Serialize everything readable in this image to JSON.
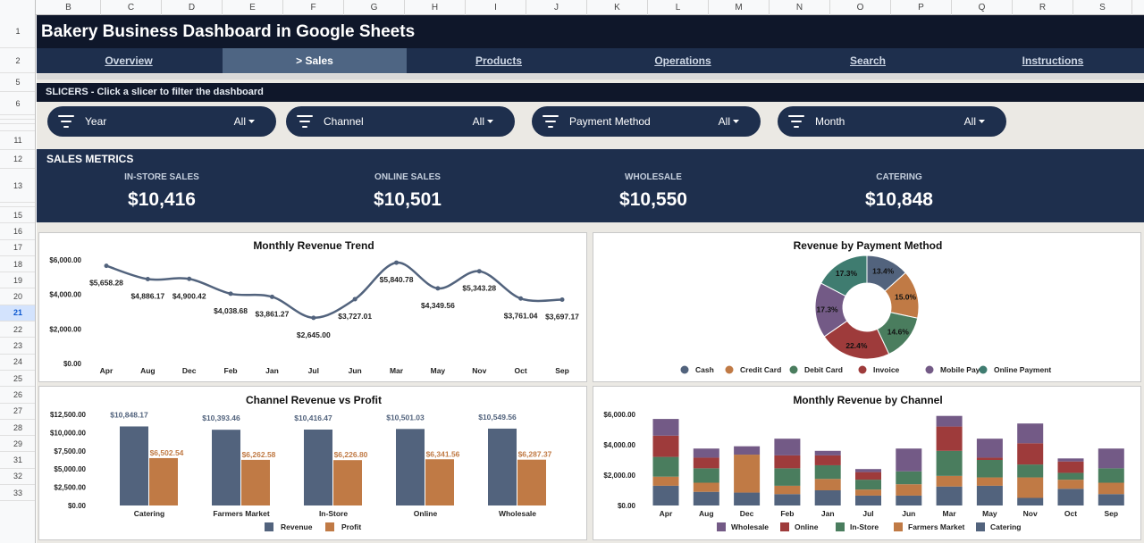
{
  "columns": [
    "B",
    "C",
    "D",
    "E",
    "F",
    "G",
    "H",
    "I",
    "J",
    "K",
    "L",
    "M",
    "N",
    "O",
    "P",
    "Q",
    "R",
    "S"
  ],
  "rows": [
    "1",
    "2",
    "5",
    "6",
    "7",
    "8",
    "10",
    "11",
    "12",
    "13",
    "14",
    "15",
    "16",
    "17",
    "18",
    "19",
    "20",
    "21",
    "22",
    "23",
    "24",
    "25",
    "26",
    "27",
    "28",
    "29",
    "31",
    "32",
    "33"
  ],
  "selected_row": "21",
  "title": "Bakery Business Dashboard in Google Sheets",
  "nav": [
    {
      "label": "Overview"
    },
    {
      "label": "> Sales"
    },
    {
      "label": "Products"
    },
    {
      "label": "Operations"
    },
    {
      "label": "Search"
    },
    {
      "label": "Instructions"
    }
  ],
  "slicers": {
    "header": "SLICERS - Click a slicer to filter the dashboard",
    "items": [
      {
        "label": "Year",
        "value": "All"
      },
      {
        "label": "Channel",
        "value": "All"
      },
      {
        "label": "Payment Method",
        "value": "All"
      },
      {
        "label": "Month",
        "value": "All"
      }
    ]
  },
  "metrics": {
    "header": "SALES METRICS",
    "items": [
      {
        "label": "IN-STORE SALES",
        "value": "$10,416"
      },
      {
        "label": "ONLINE SALES",
        "value": "$10,501"
      },
      {
        "label": "WHOLESALE",
        "value": "$10,550"
      },
      {
        "label": "CATERING",
        "value": "$10,848"
      }
    ]
  },
  "colors": {
    "navy": "#1e2f4d",
    "dark": "#0f172a",
    "slate": "#52637d",
    "copper": "#c07a45",
    "green": "#4a7d5e",
    "red": "#9e3b3b",
    "purple": "#735a86",
    "teal": "#3f7c70"
  },
  "chart_data": [
    {
      "type": "line",
      "title": "Monthly Revenue Trend",
      "categories": [
        "Apr",
        "Aug",
        "Dec",
        "Feb",
        "Jan",
        "Jul",
        "Jun",
        "Mar",
        "May",
        "Nov",
        "Oct",
        "Sep"
      ],
      "values": [
        5658.28,
        4886.17,
        4900.42,
        4038.68,
        3861.27,
        2645.0,
        3727.01,
        5840.78,
        4349.56,
        5343.28,
        3761.04,
        3697.17
      ],
      "data_labels": [
        "$5,658.28",
        "$4,886.17",
        "$4,900.42",
        "$4,038.68",
        "$3,861.27",
        "$2,645.00",
        "$3,727.01",
        "$5,840.78",
        "$4,349.56",
        "$5,343.28",
        "$3,761.04",
        "$3,697.17"
      ],
      "ylim": [
        0,
        6000
      ],
      "yticks": [
        "$0.00",
        "$2,000.00",
        "$4,000.00",
        "$6,000.00"
      ],
      "color": "#52637d"
    },
    {
      "type": "pie",
      "title": "Revenue by Payment Method",
      "donut": true,
      "categories": [
        "Cash",
        "Credit Card",
        "Debit Card",
        "Invoice",
        "Mobile Pay",
        "Online Payment"
      ],
      "values": [
        13.4,
        15.0,
        14.6,
        22.4,
        17.3,
        17.3
      ],
      "data_labels": [
        "13.4%",
        "15.0%",
        "14.6%",
        "22.4%",
        "17.3%",
        "17.3%"
      ],
      "colors": [
        "#52637d",
        "#c07a45",
        "#4a7d5e",
        "#9e3b3b",
        "#735a86",
        "#3f7c70"
      ],
      "legend": "bottom"
    },
    {
      "type": "bar",
      "title": "Channel Revenue vs Profit",
      "categories": [
        "Catering",
        "Farmers Market",
        "In-Store",
        "Online",
        "Wholesale"
      ],
      "series": [
        {
          "name": "Revenue",
          "values": [
            10848.17,
            10393.46,
            10416.47,
            10501.03,
            10549.56
          ],
          "labels": [
            "$10,848.17",
            "$10,393.46",
            "$10,416.47",
            "$10,501.03",
            "$10,549.56"
          ],
          "color": "#52637d"
        },
        {
          "name": "Profit",
          "values": [
            6502.54,
            6262.58,
            6226.8,
            6341.56,
            6287.37
          ],
          "labels": [
            "$6,502.54",
            "$6,262.58",
            "$6,226.80",
            "$6,341.56",
            "$6,287.37"
          ],
          "color": "#c07a45"
        }
      ],
      "ylim": [
        0,
        12500
      ],
      "yticks": [
        "$0.00",
        "$2,500.00",
        "$5,000.00",
        "$7,500.00",
        "$10,000.00",
        "$12,500.00"
      ],
      "legend": "bottom"
    },
    {
      "type": "bar",
      "stacked": true,
      "title": "Monthly Revenue by Channel",
      "categories": [
        "Apr",
        "Aug",
        "Dec",
        "Feb",
        "Jan",
        "Jul",
        "Jun",
        "Mar",
        "May",
        "Nov",
        "Oct",
        "Sep"
      ],
      "series": [
        {
          "name": "Catering",
          "values": [
            1300,
            900,
            850,
            750,
            1000,
            650,
            650,
            1250,
            1300,
            500,
            1100,
            750
          ],
          "color": "#52637d"
        },
        {
          "name": "Farmers Market",
          "values": [
            600,
            600,
            2500,
            550,
            750,
            400,
            750,
            700,
            550,
            1350,
            600,
            750
          ],
          "color": "#c07a45"
        },
        {
          "name": "In-Store",
          "values": [
            1300,
            950,
            0,
            1150,
            900,
            650,
            850,
            1650,
            1150,
            850,
            450,
            950
          ],
          "color": "#4a7d5e"
        },
        {
          "name": "Online",
          "values": [
            1400,
            700,
            0,
            850,
            650,
            500,
            0,
            1600,
            150,
            1400,
            750,
            0
          ],
          "color": "#9e3b3b"
        },
        {
          "name": "Wholesale",
          "values": [
            1100,
            600,
            550,
            1100,
            300,
            200,
            1500,
            700,
            1250,
            1300,
            200,
            1300
          ],
          "color": "#735a86"
        }
      ],
      "legend_order": [
        "Wholesale",
        "Online",
        "In-Store",
        "Farmers Market",
        "Catering"
      ],
      "ylim": [
        0,
        6000
      ],
      "yticks": [
        "$0.00",
        "$2,000.00",
        "$4,000.00",
        "$6,000.00"
      ],
      "legend": "bottom"
    }
  ]
}
